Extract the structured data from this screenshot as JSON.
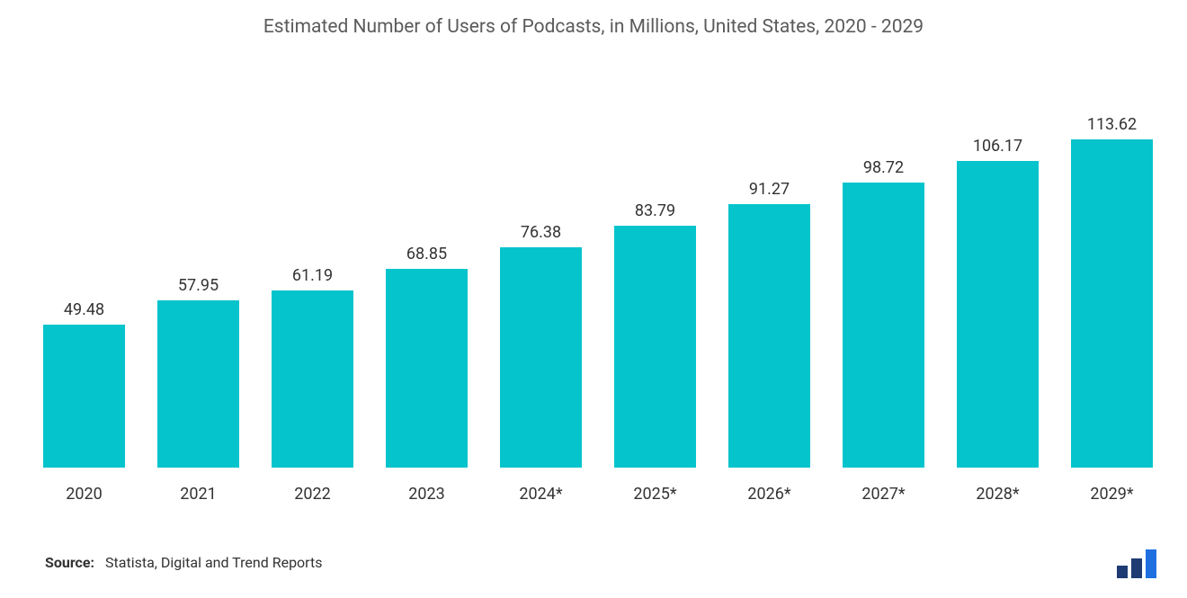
{
  "chart": {
    "type": "bar",
    "title": "Estimated Number of Users of Podcasts, in Millions, United States, 2020 - 2029",
    "title_fontsize": 21,
    "title_color": "#5b5b5b",
    "categories": [
      "2020",
      "2021",
      "2022",
      "2023",
      "2024*",
      "2025*",
      "2026*",
      "2027*",
      "2028*",
      "2029*"
    ],
    "values": [
      49.48,
      57.95,
      61.19,
      68.85,
      76.38,
      83.79,
      91.27,
      98.72,
      106.17,
      113.62
    ],
    "value_labels": [
      "49.48",
      "57.95",
      "61.19",
      "68.85",
      "76.38",
      "83.79",
      "91.27",
      "98.72",
      "106.17",
      "113.62"
    ],
    "bar_color": "#06c4cc",
    "value_label_color": "#333333",
    "value_label_fontsize": 18,
    "x_tick_color": "#333333",
    "x_tick_fontsize": 18,
    "background_color": "#ffffff",
    "ylim": [
      0,
      140
    ],
    "bar_width_ratio": 0.72,
    "show_y_axis": false,
    "show_gridlines": false
  },
  "footer": {
    "source_label": "Source:",
    "source_text": "Statista, Digital and Trend Reports",
    "label_fontweight": 700,
    "text_fontweight": 400,
    "fontsize": 16,
    "color": "#333333"
  },
  "logo": {
    "bar_colors": [
      "#1f3b73",
      "#1f3b73",
      "#1f6fe0"
    ],
    "heights": [
      14,
      22,
      32
    ]
  }
}
